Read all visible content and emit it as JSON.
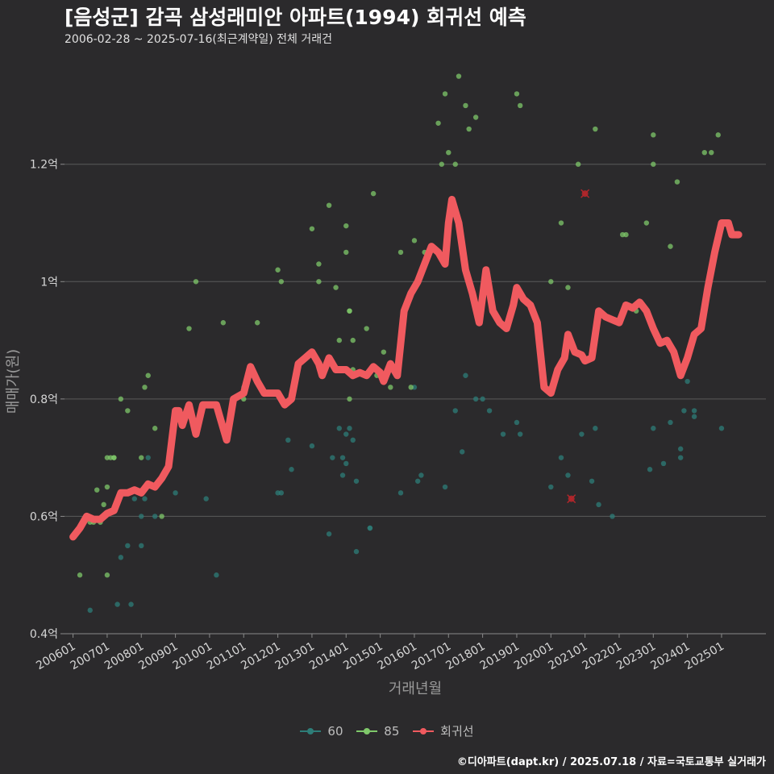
{
  "title": "[음성군] 감곡 삼성래미안 아파트(1994) 회귀선 예측",
  "subtitle": "2006-02-28 ~ 2025-07-16(최근계약일) 전체 거래건",
  "caption": "©디아파트(dapt.kr) / 2025.07.18 / 자료=국토교통부 실거래가",
  "colors": {
    "background": "#2b2a2c",
    "grid": "#5a5a5a",
    "series_60": "#2e7d78",
    "series_85": "#7fc86a",
    "regression": "#f05a5f",
    "outlier": "#b3262b"
  },
  "legend": [
    {
      "label": "60",
      "key": "series_60"
    },
    {
      "label": "85",
      "key": "series_85"
    },
    {
      "label": "회귀선",
      "key": "regression"
    }
  ],
  "chart_data": {
    "type": "scatter",
    "xlabel": "거래년월",
    "ylabel": "매매가(원)",
    "xlim": [
      2005.75,
      2026.3
    ],
    "ylim": [
      0.4,
      1.37
    ],
    "yticks": [
      {
        "value": 0.4,
        "label": "0.4억"
      },
      {
        "value": 0.6,
        "label": "0.6억"
      },
      {
        "value": 0.8,
        "label": "0.8억"
      },
      {
        "value": 1.0,
        "label": "1억"
      },
      {
        "value": 1.2,
        "label": "1.2억"
      }
    ],
    "xticks": [
      {
        "value": 2006.0,
        "label": "200601"
      },
      {
        "value": 2007.0,
        "label": "200701"
      },
      {
        "value": 2008.0,
        "label": "200801"
      },
      {
        "value": 2009.0,
        "label": "200901"
      },
      {
        "value": 2010.0,
        "label": "201001"
      },
      {
        "value": 2011.0,
        "label": "201101"
      },
      {
        "value": 2012.0,
        "label": "201201"
      },
      {
        "value": 2013.0,
        "label": "201301"
      },
      {
        "value": 2014.0,
        "label": "201401"
      },
      {
        "value": 2015.0,
        "label": "201501"
      },
      {
        "value": 2016.0,
        "label": "201601"
      },
      {
        "value": 2017.0,
        "label": "201701"
      },
      {
        "value": 2018.0,
        "label": "201801"
      },
      {
        "value": 2019.0,
        "label": "201901"
      },
      {
        "value": 2020.0,
        "label": "202001"
      },
      {
        "value": 2021.0,
        "label": "202101"
      },
      {
        "value": 2022.0,
        "label": "202201"
      },
      {
        "value": 2023.0,
        "label": "202301"
      },
      {
        "value": 2024.0,
        "label": "202401"
      },
      {
        "value": 2025.0,
        "label": "202501"
      }
    ],
    "series": [
      {
        "name": "60",
        "points": [
          [
            2006.5,
            0.44
          ],
          [
            2007.3,
            0.45
          ],
          [
            2007.4,
            0.53
          ],
          [
            2007.6,
            0.55
          ],
          [
            2007.7,
            0.45
          ],
          [
            2007.8,
            0.63
          ],
          [
            2008.0,
            0.55
          ],
          [
            2008.0,
            0.6
          ],
          [
            2008.1,
            0.63
          ],
          [
            2008.2,
            0.7
          ],
          [
            2008.4,
            0.6
          ],
          [
            2009.0,
            0.64
          ],
          [
            2009.9,
            0.63
          ],
          [
            2010.2,
            0.5
          ],
          [
            2011.0,
            0.82
          ],
          [
            2012.0,
            0.64
          ],
          [
            2012.1,
            0.64
          ],
          [
            2012.3,
            0.73
          ],
          [
            2012.4,
            0.68
          ],
          [
            2013.0,
            0.72
          ],
          [
            2013.5,
            0.57
          ],
          [
            2013.6,
            0.7
          ],
          [
            2013.8,
            0.75
          ],
          [
            2013.9,
            0.7
          ],
          [
            2013.9,
            0.67
          ],
          [
            2014.0,
            0.74
          ],
          [
            2014.0,
            0.69
          ],
          [
            2014.1,
            0.75
          ],
          [
            2014.2,
            0.73
          ],
          [
            2014.3,
            0.66
          ],
          [
            2014.3,
            0.54
          ],
          [
            2014.7,
            0.58
          ],
          [
            2014.7,
            0.58
          ],
          [
            2015.6,
            0.64
          ],
          [
            2016.0,
            0.82
          ],
          [
            2016.1,
            0.66
          ],
          [
            2016.2,
            0.67
          ],
          [
            2016.9,
            0.65
          ],
          [
            2017.2,
            0.78
          ],
          [
            2017.4,
            0.71
          ],
          [
            2017.5,
            0.84
          ],
          [
            2017.8,
            0.8
          ],
          [
            2018.0,
            0.8
          ],
          [
            2018.2,
            0.78
          ],
          [
            2018.6,
            0.74
          ],
          [
            2019.0,
            0.76
          ],
          [
            2019.1,
            0.74
          ],
          [
            2020.0,
            0.65
          ],
          [
            2020.3,
            0.7
          ],
          [
            2020.5,
            0.67
          ],
          [
            2020.9,
            0.74
          ],
          [
            2021.2,
            0.66
          ],
          [
            2021.3,
            0.75
          ],
          [
            2021.4,
            0.62
          ],
          [
            2021.8,
            0.6
          ],
          [
            2022.9,
            0.68
          ],
          [
            2023.0,
            0.75
          ],
          [
            2023.3,
            0.69
          ],
          [
            2023.5,
            0.76
          ],
          [
            2023.9,
            0.78
          ],
          [
            2023.8,
            0.7
          ],
          [
            2023.8,
            0.715
          ],
          [
            2024.0,
            0.83
          ],
          [
            2024.2,
            0.77
          ],
          [
            2024.2,
            0.78
          ],
          [
            2025.0,
            0.75
          ]
        ]
      },
      {
        "name": "85",
        "points": [
          [
            2006.2,
            0.5
          ],
          [
            2006.5,
            0.59
          ],
          [
            2006.6,
            0.59
          ],
          [
            2006.7,
            0.645
          ],
          [
            2006.8,
            0.59
          ],
          [
            2006.9,
            0.62
          ],
          [
            2007.0,
            0.65
          ],
          [
            2007.0,
            0.7
          ],
          [
            2007.1,
            0.7
          ],
          [
            2007.2,
            0.7
          ],
          [
            2007.2,
            0.7
          ],
          [
            2007.0,
            0.5
          ],
          [
            2007.4,
            0.8
          ],
          [
            2007.6,
            0.78
          ],
          [
            2008.0,
            0.7
          ],
          [
            2008.1,
            0.82
          ],
          [
            2008.2,
            0.84
          ],
          [
            2008.4,
            0.75
          ],
          [
            2008.6,
            0.6
          ],
          [
            2009.4,
            0.92
          ],
          [
            2009.6,
            1.0
          ],
          [
            2010.4,
            0.93
          ],
          [
            2011.0,
            0.8
          ],
          [
            2011.4,
            0.93
          ],
          [
            2012.0,
            1.02
          ],
          [
            2012.1,
            1.0
          ],
          [
            2013.0,
            1.09
          ],
          [
            2013.2,
            1.03
          ],
          [
            2013.2,
            1.0
          ],
          [
            2013.5,
            1.13
          ],
          [
            2013.7,
            0.99
          ],
          [
            2013.8,
            0.9
          ],
          [
            2014.0,
            1.05
          ],
          [
            2014.0,
            1.095
          ],
          [
            2014.1,
            0.95
          ],
          [
            2014.1,
            0.95
          ],
          [
            2014.2,
            0.9
          ],
          [
            2014.1,
            0.8
          ],
          [
            2014.2,
            0.85
          ],
          [
            2014.6,
            0.92
          ],
          [
            2014.8,
            1.15
          ],
          [
            2014.9,
            0.84
          ],
          [
            2015.1,
            0.88
          ],
          [
            2015.3,
            0.82
          ],
          [
            2015.6,
            1.05
          ],
          [
            2015.9,
            0.82
          ],
          [
            2016.0,
            1.07
          ],
          [
            2016.3,
            1.05
          ],
          [
            2016.7,
            1.27
          ],
          [
            2016.8,
            1.2
          ],
          [
            2016.9,
            1.32
          ],
          [
            2017.0,
            1.22
          ],
          [
            2017.2,
            1.2
          ],
          [
            2017.3,
            1.35
          ],
          [
            2017.5,
            1.3
          ],
          [
            2017.6,
            1.26
          ],
          [
            2017.8,
            1.28
          ],
          [
            2019.0,
            1.32
          ],
          [
            2019.1,
            1.3
          ],
          [
            2020.0,
            1.0
          ],
          [
            2020.3,
            1.1
          ],
          [
            2020.5,
            0.99
          ],
          [
            2020.8,
            1.2
          ],
          [
            2021.3,
            1.26
          ],
          [
            2022.1,
            1.08
          ],
          [
            2022.2,
            1.08
          ],
          [
            2022.5,
            0.95
          ],
          [
            2022.8,
            1.1
          ],
          [
            2023.0,
            1.2
          ],
          [
            2023.0,
            1.25
          ],
          [
            2023.5,
            1.06
          ],
          [
            2023.7,
            1.17
          ],
          [
            2024.5,
            1.22
          ],
          [
            2024.7,
            1.22
          ],
          [
            2024.9,
            1.25
          ],
          [
            2025.2,
            1.1
          ]
        ]
      }
    ],
    "outliers": [
      [
        2020.6,
        0.63
      ],
      [
        2021.0,
        1.15
      ]
    ],
    "regression": [
      [
        2006.0,
        0.565
      ],
      [
        2006.2,
        0.58
      ],
      [
        2006.4,
        0.6
      ],
      [
        2006.6,
        0.595
      ],
      [
        2006.8,
        0.595
      ],
      [
        2007.0,
        0.605
      ],
      [
        2007.2,
        0.61
      ],
      [
        2007.4,
        0.64
      ],
      [
        2007.6,
        0.64
      ],
      [
        2007.8,
        0.645
      ],
      [
        2008.0,
        0.64
      ],
      [
        2008.2,
        0.655
      ],
      [
        2008.4,
        0.65
      ],
      [
        2008.6,
        0.665
      ],
      [
        2008.8,
        0.685
      ],
      [
        2009.0,
        0.78
      ],
      [
        2009.1,
        0.78
      ],
      [
        2009.2,
        0.755
      ],
      [
        2009.4,
        0.79
      ],
      [
        2009.6,
        0.74
      ],
      [
        2009.8,
        0.79
      ],
      [
        2010.0,
        0.79
      ],
      [
        2010.2,
        0.79
      ],
      [
        2010.3,
        0.77
      ],
      [
        2010.5,
        0.73
      ],
      [
        2010.7,
        0.8
      ],
      [
        2011.0,
        0.81
      ],
      [
        2011.2,
        0.855
      ],
      [
        2011.4,
        0.83
      ],
      [
        2011.6,
        0.81
      ],
      [
        2012.0,
        0.81
      ],
      [
        2012.2,
        0.79
      ],
      [
        2012.4,
        0.8
      ],
      [
        2012.6,
        0.86
      ],
      [
        2012.8,
        0.87
      ],
      [
        2013.0,
        0.88
      ],
      [
        2013.2,
        0.86
      ],
      [
        2013.3,
        0.84
      ],
      [
        2013.5,
        0.87
      ],
      [
        2013.7,
        0.85
      ],
      [
        2014.0,
        0.85
      ],
      [
        2014.2,
        0.84
      ],
      [
        2014.4,
        0.845
      ],
      [
        2014.6,
        0.84
      ],
      [
        2014.8,
        0.855
      ],
      [
        2015.0,
        0.845
      ],
      [
        2015.1,
        0.83
      ],
      [
        2015.3,
        0.86
      ],
      [
        2015.5,
        0.84
      ],
      [
        2015.7,
        0.95
      ],
      [
        2015.9,
        0.98
      ],
      [
        2016.1,
        1.0
      ],
      [
        2016.3,
        1.03
      ],
      [
        2016.5,
        1.06
      ],
      [
        2016.7,
        1.05
      ],
      [
        2016.9,
        1.03
      ],
      [
        2017.0,
        1.1
      ],
      [
        2017.1,
        1.14
      ],
      [
        2017.3,
        1.1
      ],
      [
        2017.5,
        1.02
      ],
      [
        2017.7,
        0.98
      ],
      [
        2017.9,
        0.93
      ],
      [
        2018.1,
        1.02
      ],
      [
        2018.3,
        0.95
      ],
      [
        2018.5,
        0.93
      ],
      [
        2018.7,
        0.92
      ],
      [
        2018.9,
        0.96
      ],
      [
        2019.0,
        0.99
      ],
      [
        2019.2,
        0.97
      ],
      [
        2019.4,
        0.96
      ],
      [
        2019.6,
        0.93
      ],
      [
        2019.8,
        0.82
      ],
      [
        2020.0,
        0.81
      ],
      [
        2020.2,
        0.85
      ],
      [
        2020.4,
        0.87
      ],
      [
        2020.5,
        0.91
      ],
      [
        2020.7,
        0.88
      ],
      [
        2020.9,
        0.875
      ],
      [
        2021.0,
        0.865
      ],
      [
        2021.2,
        0.87
      ],
      [
        2021.4,
        0.95
      ],
      [
        2021.6,
        0.94
      ],
      [
        2021.8,
        0.935
      ],
      [
        2022.0,
        0.93
      ],
      [
        2022.2,
        0.96
      ],
      [
        2022.4,
        0.955
      ],
      [
        2022.6,
        0.965
      ],
      [
        2022.8,
        0.95
      ],
      [
        2023.0,
        0.92
      ],
      [
        2023.2,
        0.895
      ],
      [
        2023.4,
        0.9
      ],
      [
        2023.6,
        0.88
      ],
      [
        2023.8,
        0.84
      ],
      [
        2024.0,
        0.87
      ],
      [
        2024.2,
        0.91
      ],
      [
        2024.4,
        0.92
      ],
      [
        2024.6,
        0.99
      ],
      [
        2024.8,
        1.05
      ],
      [
        2025.0,
        1.1
      ],
      [
        2025.2,
        1.1
      ],
      [
        2025.3,
        1.08
      ],
      [
        2025.5,
        1.08
      ]
    ]
  }
}
